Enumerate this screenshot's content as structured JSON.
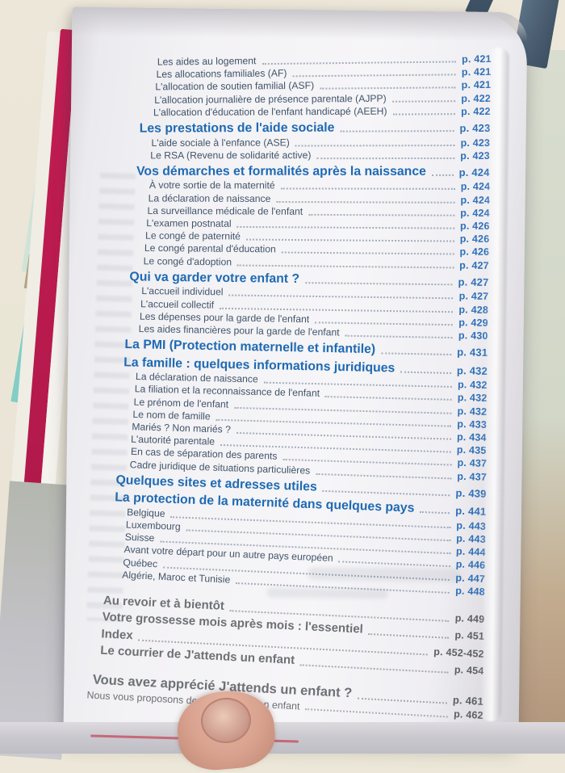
{
  "colors": {
    "heading_blue": "#1e6ab3",
    "entry_slate": "#42556a",
    "page_number_blue": "#2e6fb8",
    "closing_gray": "#6d7175",
    "cover_crimson": "#b61a4d",
    "bookmark_slate": "#47596c",
    "teal_band": "#82cdc6"
  },
  "page": {
    "toc_rows": [
      {
        "label": "Les aides au logement",
        "page": "p. 421",
        "style": "s"
      },
      {
        "label": "Les allocations familiales (AF)",
        "page": "p. 421",
        "style": "s"
      },
      {
        "label": "L'allocation de soutien familial (ASF)",
        "page": "p. 421",
        "style": "s"
      },
      {
        "label": "L'allocation journalière de présence parentale (AJPP)",
        "page": "p. 422",
        "style": "s"
      },
      {
        "label": "L'allocation d'éducation de l'enfant handicapé (AEEH)",
        "page": "p. 422",
        "style": "s"
      },
      {
        "label": "Les prestations de l'aide sociale",
        "page": "p. 423",
        "style": "h"
      },
      {
        "label": "L'aide sociale à l'enfance (ASE)",
        "page": "p. 423",
        "style": "s"
      },
      {
        "label": "Le RSA (Revenu de solidarité active)",
        "page": "p. 423",
        "style": "s"
      },
      {
        "label": "Vos démarches et formalités après la naissance",
        "page": "p. 424",
        "style": "h"
      },
      {
        "label": "À votre sortie de la maternité",
        "page": "p. 424",
        "style": "s"
      },
      {
        "label": "La déclaration de naissance",
        "page": "p. 424",
        "style": "s"
      },
      {
        "label": "La surveillance médicale de l'enfant",
        "page": "p. 424",
        "style": "s"
      },
      {
        "label": "L'examen postnatal",
        "page": "p. 426",
        "style": "s"
      },
      {
        "label": "Le congé de paternité",
        "page": "p. 426",
        "style": "s"
      },
      {
        "label": "Le congé parental d'éducation",
        "page": "p. 426",
        "style": "s"
      },
      {
        "label": "Le congé d'adoption",
        "page": "p. 427",
        "style": "s"
      },
      {
        "label": "Qui va garder votre enfant ?",
        "page": "p. 427",
        "style": "h"
      },
      {
        "label": "L'accueil individuel",
        "page": "p. 427",
        "style": "s"
      },
      {
        "label": "L'accueil collectif",
        "page": "p. 428",
        "style": "s"
      },
      {
        "label": "Les dépenses pour la garde de l'enfant",
        "page": "p. 429",
        "style": "s"
      },
      {
        "label": "Les aides financières pour la garde de l'enfant",
        "page": "p. 430",
        "style": "s"
      },
      {
        "label": "La PMI (Protection maternelle et infantile)",
        "page": "p. 431",
        "style": "h"
      },
      {
        "label": "La famille : quelques informations juridiques",
        "page": "p. 432",
        "style": "h"
      },
      {
        "label": "La déclaration de naissance",
        "page": "p. 432",
        "style": "s"
      },
      {
        "label": "La filiation et la reconnaissance de l'enfant",
        "page": "p. 432",
        "style": "s"
      },
      {
        "label": "Le prénom de l'enfant",
        "page": "p. 432",
        "style": "s"
      },
      {
        "label": "Le nom de famille",
        "page": "p. 433",
        "style": "s"
      },
      {
        "label": "Mariés ? Non mariés ?",
        "page": "p. 434",
        "style": "s"
      },
      {
        "label": "L'autorité parentale",
        "page": "p. 435",
        "style": "s"
      },
      {
        "label": "En cas de séparation des parents",
        "page": "p. 437",
        "style": "s"
      },
      {
        "label": "Cadre juridique de situations particulières",
        "page": "p. 437",
        "style": "s"
      },
      {
        "label": "Quelques sites et adresses utiles",
        "page": "p. 439",
        "style": "h"
      },
      {
        "label": "La protection de la maternité dans quelques pays",
        "page": "p. 441",
        "style": "h"
      },
      {
        "label": "Belgique",
        "page": "p. 443",
        "style": "s"
      },
      {
        "label": "Luxembourg",
        "page": "p. 443",
        "style": "s"
      },
      {
        "label": "Suisse",
        "page": "p. 444",
        "style": "s"
      },
      {
        "label": "Avant votre départ pour un autre pays européen",
        "page": "p. 446",
        "style": "s"
      },
      {
        "label": "Québec",
        "page": "p. 447",
        "style": "s"
      },
      {
        "label": "Algérie, Maroc et Tunisie",
        "page": "p. 448",
        "style": "s"
      },
      {
        "label": "Au revoir et à bientôt",
        "page": "p. 449",
        "style": "g",
        "gap": true
      },
      {
        "label": "Votre grossesse mois après mois : l'essentiel",
        "page": "p. 451",
        "style": "g"
      },
      {
        "label": "Index",
        "page": "p. 452-452",
        "style": "g"
      },
      {
        "label": "Le courrier de J'attends un enfant",
        "page": "p. 454",
        "style": "g"
      },
      {
        "label": "Vous avez apprécié J'attends un enfant ?",
        "page": "p. 461",
        "style": "g2",
        "gap": true
      },
      {
        "label": "Nous vous proposons de lire J'élève mon enfant",
        "page": "p. 462",
        "style": "gs"
      }
    ]
  }
}
